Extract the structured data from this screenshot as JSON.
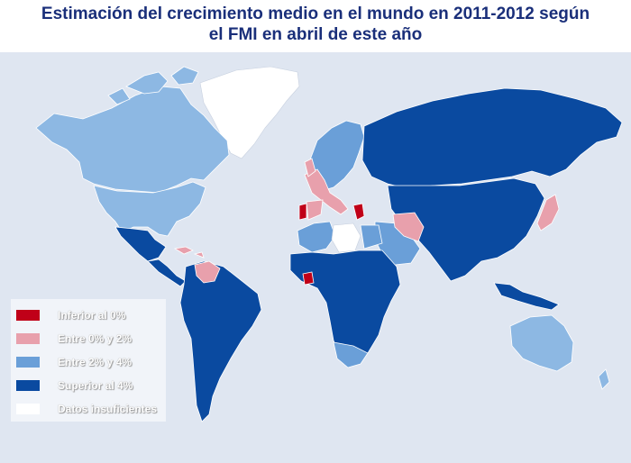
{
  "title_line1": "Estimación del crecimiento medio en el mundo en 2011-2012 según",
  "title_line2": "el FMI en abril de este año",
  "legend": [
    {
      "label": "Inferior al 0%",
      "color": "#c00018"
    },
    {
      "label": "Entre 0% y 2%",
      "color": "#e8a0ac"
    },
    {
      "label": "Entre 2% y 4%",
      "color": "#6a9fd8"
    },
    {
      "label": "Superior al 4%",
      "color": "#0a4aa0"
    },
    {
      "label": "Datos insuficientes",
      "color": "#ffffff"
    }
  ],
  "colors": {
    "ocean": "#dfe6f1",
    "title": "#1a2f7a",
    "high": "#0a4aa0",
    "mid": "#6a9fd8",
    "low": "#e8a0ac",
    "neg": "#c00018",
    "nodata": "#ffffff"
  }
}
